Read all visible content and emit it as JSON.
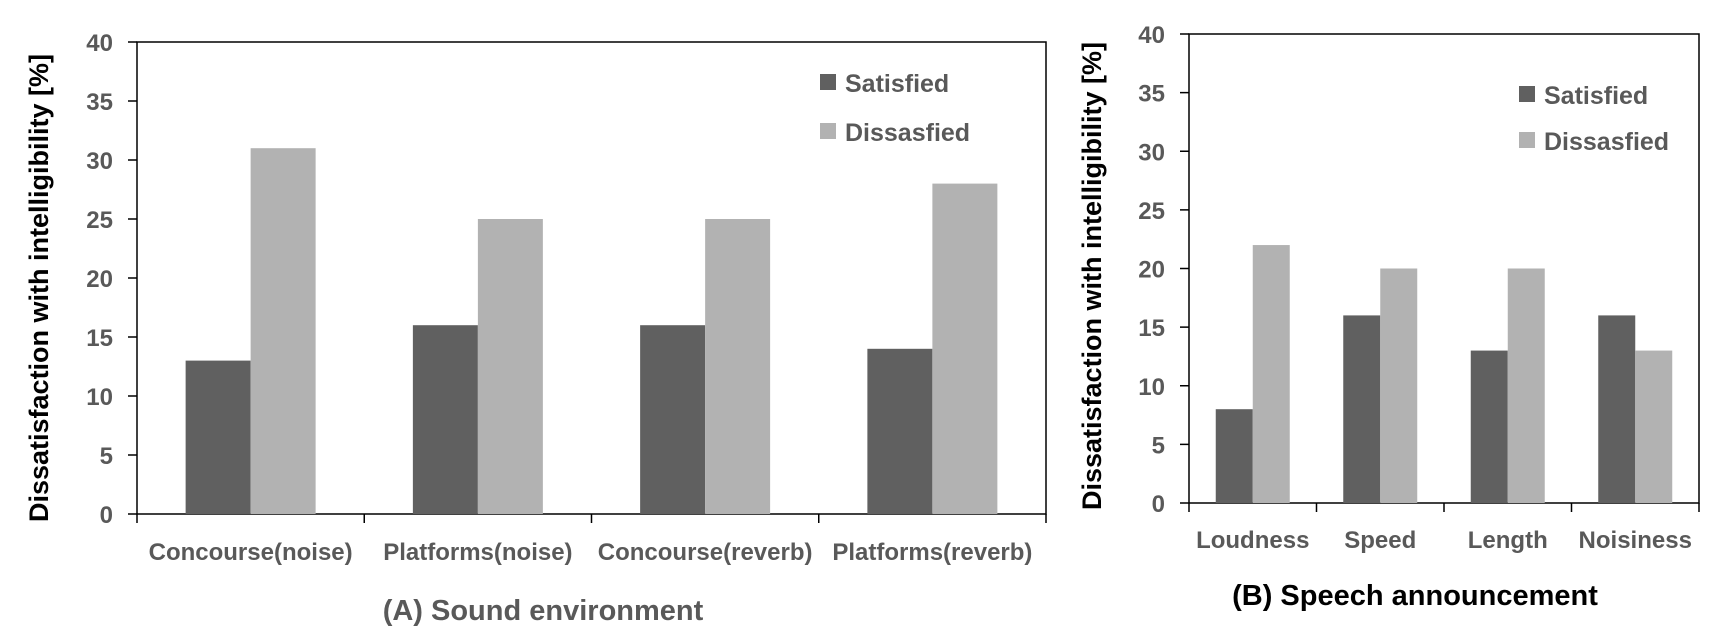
{
  "chart_data": [
    {
      "type": "bar",
      "ylabel": "Dissatisfaction with intelligibility [%]",
      "subtitle": "(A) Sound environment",
      "categories": [
        "Concourse(noise)",
        "Platforms(noise)",
        "Concourse(reverb)",
        "Platforms(reverb)"
      ],
      "series": [
        {
          "name": "Satisfied",
          "values": [
            13,
            16,
            16,
            14
          ],
          "color": "#606060"
        },
        {
          "name": "Dissasfied",
          "values": [
            31,
            25,
            25,
            28
          ],
          "color": "#b2b2b2"
        }
      ],
      "ylim": [
        0,
        40
      ],
      "yticks": [
        "0",
        "5",
        "10",
        "15",
        "20",
        "25",
        "30",
        "35",
        "40"
      ],
      "grid": false,
      "legend": "top-right",
      "subtitle_color": "#595959"
    },
    {
      "type": "bar",
      "ylabel": "Dissatisfaction with intelligibility [%]",
      "subtitle": "(B) Speech announcement",
      "categories": [
        "Loudness",
        "Speed",
        "Length",
        "Noisiness"
      ],
      "series": [
        {
          "name": "Satisfied",
          "values": [
            8,
            16,
            13,
            16
          ],
          "color": "#606060"
        },
        {
          "name": "Dissasfied",
          "values": [
            22,
            20,
            20,
            13
          ],
          "color": "#b2b2b2"
        }
      ],
      "ylim": [
        0,
        40
      ],
      "yticks": [
        "0",
        "5",
        "10",
        "15",
        "20",
        "25",
        "30",
        "35",
        "40"
      ],
      "grid": false,
      "legend": "top-right",
      "subtitle_color": "#000000"
    }
  ]
}
